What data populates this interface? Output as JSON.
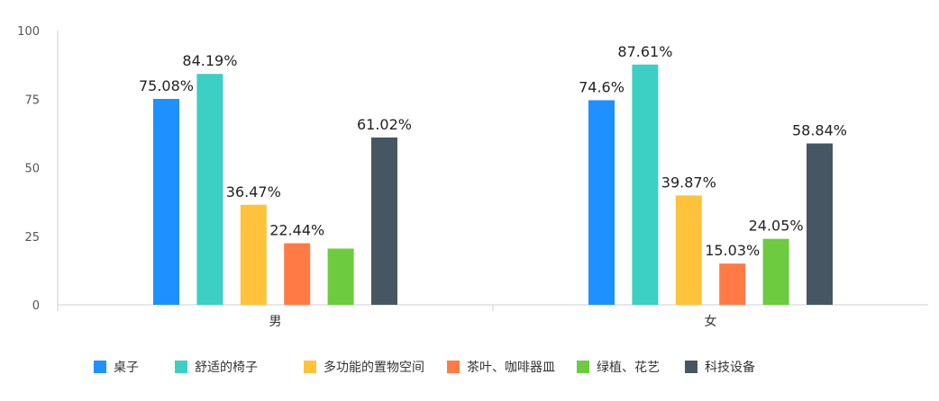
{
  "chart_data": {
    "type": "bar",
    "categories": [
      "男",
      "女"
    ],
    "series": [
      {
        "name": "桌子",
        "values": [
          75.08,
          74.6
        ],
        "labels": [
          "75.08%",
          "74.6%"
        ],
        "color": "#1E90FF"
      },
      {
        "name": "舒适的椅子",
        "values": [
          84.19,
          87.61
        ],
        "labels": [
          "84.19%",
          "87.61%"
        ],
        "color": "#3CCFC4"
      },
      {
        "name": "多功能的置物空间",
        "values": [
          36.47,
          39.87
        ],
        "labels": [
          "36.47%",
          "39.87%"
        ],
        "color": "#FFC23A"
      },
      {
        "name": "茶叶、咖啡器皿",
        "values": [
          22.44,
          15.03
        ],
        "labels": [
          "22.44%",
          "15.03%"
        ],
        "color": "#FF7A45"
      },
      {
        "name": "绿植、花艺",
        "values": [
          20.5,
          24.05
        ],
        "labels": [
          "",
          "24.05%"
        ],
        "color": "#6CCB3F"
      },
      {
        "name": "科技设备",
        "values": [
          61.02,
          58.84
        ],
        "labels": [
          "61.02%",
          "58.84%"
        ],
        "color": "#475663"
      }
    ],
    "yticks": [
      "0",
      "25",
      "50",
      "75",
      "100"
    ],
    "ylim": [
      0,
      100
    ],
    "grid": false,
    "legend_position": "bottom"
  }
}
